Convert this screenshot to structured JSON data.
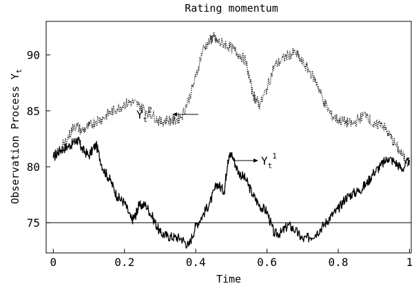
{
  "chart_data": {
    "type": "line",
    "title": "Rating momentum",
    "xlabel": "Time",
    "ylabel": "Observation Process Y",
    "ylabel_subscript": "t",
    "xlim": [
      -0.02,
      1.005
    ],
    "ylim": [
      72.3,
      93.0
    ],
    "xticks": [
      0,
      0.2,
      0.4,
      0.6,
      0.8,
      1
    ],
    "xtick_labels": [
      "0",
      "0.2",
      "0.4",
      "0.6",
      "0.8",
      "1"
    ],
    "yticks": [
      75,
      80,
      85,
      90
    ],
    "ytick_labels": [
      "75",
      "80",
      "85",
      "90"
    ],
    "grid": false,
    "legend": "none",
    "reference_line": {
      "y": 75
    },
    "series": [
      {
        "label_base": "Y",
        "label_sub": "t",
        "label_sup": "1",
        "style": "solid",
        "color": "#000000",
        "x": [
          0.0,
          0.02,
          0.04,
          0.06,
          0.07,
          0.08,
          0.1,
          0.12,
          0.14,
          0.16,
          0.18,
          0.2,
          0.22,
          0.23,
          0.24,
          0.26,
          0.28,
          0.3,
          0.32,
          0.34,
          0.36,
          0.38,
          0.4,
          0.42,
          0.44,
          0.46,
          0.48,
          0.49,
          0.5,
          0.52,
          0.54,
          0.56,
          0.58,
          0.6,
          0.62,
          0.64,
          0.66,
          0.68,
          0.7,
          0.72,
          0.74,
          0.76,
          0.78,
          0.8,
          0.82,
          0.84,
          0.86,
          0.88,
          0.9,
          0.92,
          0.94,
          0.96,
          0.98,
          1.0
        ],
        "y": [
          80.8,
          81.5,
          81.8,
          82.2,
          82.4,
          81.6,
          81.0,
          82.0,
          79.8,
          78.8,
          77.3,
          76.8,
          75.2,
          75.6,
          76.5,
          76.6,
          75.4,
          74.1,
          73.8,
          73.7,
          73.6,
          72.9,
          74.7,
          75.7,
          76.8,
          78.5,
          77.8,
          80.6,
          81.2,
          79.5,
          78.9,
          77.5,
          76.5,
          76.0,
          74.0,
          74.1,
          74.8,
          74.3,
          73.5,
          73.7,
          74.1,
          74.8,
          75.6,
          76.2,
          77.2,
          77.6,
          77.9,
          78.5,
          79.5,
          80.1,
          80.8,
          80.4,
          79.8,
          80.6
        ]
      },
      {
        "label_base": "Y",
        "label_sub": "t",
        "label_sup": "2",
        "style": "dotted",
        "color": "#000000",
        "x": [
          0.0,
          0.02,
          0.04,
          0.06,
          0.08,
          0.1,
          0.12,
          0.14,
          0.16,
          0.18,
          0.2,
          0.22,
          0.24,
          0.26,
          0.28,
          0.3,
          0.32,
          0.34,
          0.36,
          0.38,
          0.4,
          0.42,
          0.44,
          0.45,
          0.46,
          0.48,
          0.5,
          0.52,
          0.54,
          0.56,
          0.57,
          0.58,
          0.6,
          0.62,
          0.64,
          0.66,
          0.68,
          0.7,
          0.72,
          0.74,
          0.76,
          0.78,
          0.8,
          0.82,
          0.84,
          0.86,
          0.88,
          0.9,
          0.92,
          0.94,
          0.96,
          0.98,
          1.0
        ],
        "y": [
          80.9,
          81.5,
          82.5,
          83.8,
          83.2,
          83.6,
          84.1,
          84.3,
          84.9,
          85.2,
          85.6,
          85.8,
          85.5,
          85.0,
          84.6,
          84.0,
          84.2,
          84.1,
          84.5,
          86.0,
          88.0,
          90.5,
          91.3,
          91.6,
          91.2,
          91.0,
          90.6,
          90.1,
          89.5,
          86.5,
          86.0,
          85.5,
          87.0,
          89.0,
          89.5,
          90.0,
          90.2,
          89.3,
          88.5,
          87.5,
          85.8,
          84.6,
          84.2,
          84.0,
          83.8,
          84.3,
          84.8,
          83.5,
          84.0,
          83.0,
          82.0,
          81.0,
          80.4
        ]
      }
    ]
  }
}
